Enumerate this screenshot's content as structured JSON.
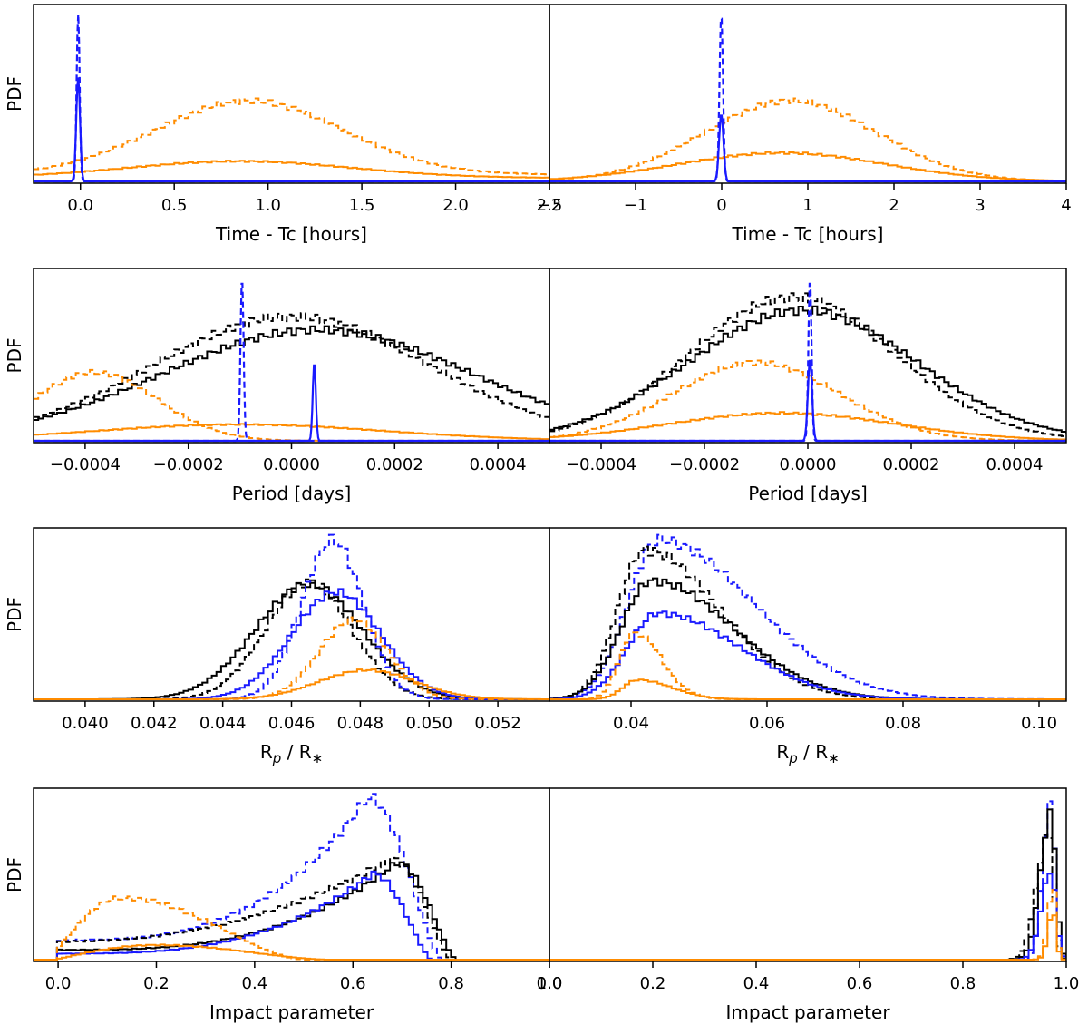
{
  "colors": {
    "orange": "#ff8c00",
    "blue": "#1a1aff",
    "black": "#000000"
  },
  "chart_data": [
    {
      "type": "line",
      "ylabel": "PDF",
      "xlabel": "Time - Tc [hours]",
      "xlim": [
        -0.25,
        2.5
      ],
      "xticks": [
        0.0,
        0.5,
        1.0,
        1.5,
        2.0,
        2.5
      ],
      "xtick_labels": [
        "0.0",
        "0.5",
        "1.0",
        "1.5",
        "2.0",
        "2.5"
      ],
      "ymax": 1.0,
      "series": [
        {
          "color": "orange",
          "dash": true,
          "step": true,
          "shape": "gauss",
          "center": 0.9,
          "sigma": 0.5,
          "amp": 0.44,
          "floor": 0.04
        },
        {
          "color": "orange",
          "dash": false,
          "step": true,
          "shape": "gauss",
          "center": 0.85,
          "sigma": 0.6,
          "amp": 0.1,
          "floor": 0.02
        },
        {
          "color": "blue",
          "dash": true,
          "step": false,
          "shape": "gauss",
          "center": -0.01,
          "sigma": 0.008,
          "amp": 1.0,
          "floor": 0
        },
        {
          "color": "blue",
          "dash": false,
          "step": false,
          "shape": "gauss",
          "center": -0.01,
          "sigma": 0.01,
          "amp": 0.62,
          "floor": 0
        }
      ]
    },
    {
      "type": "line",
      "ylabel": "",
      "xlabel": "Time - Tc [hours]",
      "xlim": [
        -2.0,
        4.0
      ],
      "xticks": [
        -2,
        -1,
        0,
        1,
        2,
        3,
        4
      ],
      "xtick_labels": [
        "−2",
        "−1",
        "0",
        "1",
        "2",
        "3",
        "4"
      ],
      "ymax": 1.0,
      "series": [
        {
          "color": "orange",
          "dash": true,
          "step": true,
          "shape": "gauss",
          "center": 0.8,
          "sigma": 1.0,
          "amp": 0.48,
          "floor": 0.0
        },
        {
          "color": "orange",
          "dash": false,
          "step": true,
          "shape": "gauss",
          "center": 0.7,
          "sigma": 1.2,
          "amp": 0.17,
          "floor": 0.0
        },
        {
          "color": "blue",
          "dash": true,
          "step": false,
          "shape": "gauss",
          "center": 0.0,
          "sigma": 0.02,
          "amp": 1.0,
          "floor": 0
        },
        {
          "color": "blue",
          "dash": false,
          "step": false,
          "shape": "gauss",
          "center": 0.0,
          "sigma": 0.025,
          "amp": 0.4,
          "floor": 0
        }
      ]
    },
    {
      "type": "line",
      "ylabel": "PDF",
      "xlabel": "Period [days]",
      "xlim": [
        -0.0005,
        0.0005
      ],
      "xticks": [
        -0.0004,
        -0.0002,
        0.0,
        0.0002,
        0.0004
      ],
      "xtick_labels": [
        "−0.0004",
        "−0.0002",
        "0.0000",
        "0.0002",
        "0.0004"
      ],
      "ymax": 1.0,
      "series": [
        {
          "color": "black",
          "dash": true,
          "step": true,
          "shape": "gauss",
          "center": 0.0,
          "sigma": 0.00027,
          "amp": 0.76,
          "floor": 0
        },
        {
          "color": "black",
          "dash": false,
          "step": true,
          "shape": "gauss",
          "center": 5e-05,
          "sigma": 0.0003,
          "amp": 0.68,
          "floor": 0
        },
        {
          "color": "orange",
          "dash": true,
          "step": true,
          "shape": "gauss",
          "center": -0.00038,
          "sigma": 0.00012,
          "amp": 0.42,
          "floor": 0
        },
        {
          "color": "orange",
          "dash": false,
          "step": true,
          "shape": "gauss",
          "center": -0.0001,
          "sigma": 0.00028,
          "amp": 0.1,
          "floor": 0
        },
        {
          "color": "blue",
          "dash": true,
          "step": false,
          "shape": "gauss",
          "center": -9.5e-05,
          "sigma": 3e-06,
          "amp": 1.0,
          "floor": 0
        },
        {
          "color": "blue",
          "dash": false,
          "step": false,
          "shape": "gauss",
          "center": 4.5e-05,
          "sigma": 3e-06,
          "amp": 0.48,
          "floor": 0
        }
      ]
    },
    {
      "type": "line",
      "ylabel": "",
      "xlabel": "Period [days]",
      "xlim": [
        -0.0005,
        0.0005
      ],
      "xticks": [
        -0.0004,
        -0.0002,
        0.0,
        0.0002,
        0.0004
      ],
      "xtick_labels": [
        "−0.0004",
        "−0.0002",
        "0.0000",
        "0.0002",
        "0.0004"
      ],
      "ymax": 1.0,
      "series": [
        {
          "color": "black",
          "dash": true,
          "step": true,
          "shape": "gauss",
          "center": -3e-05,
          "sigma": 0.0002,
          "amp": 0.88,
          "floor": 0
        },
        {
          "color": "black",
          "dash": false,
          "step": true,
          "shape": "gauss",
          "center": -1e-05,
          "sigma": 0.00022,
          "amp": 0.8,
          "floor": 0
        },
        {
          "color": "orange",
          "dash": true,
          "step": true,
          "shape": "gauss",
          "center": -0.0001,
          "sigma": 0.00016,
          "amp": 0.48,
          "floor": 0
        },
        {
          "color": "orange",
          "dash": false,
          "step": true,
          "shape": "gauss",
          "center": -5e-05,
          "sigma": 0.00022,
          "amp": 0.17,
          "floor": 0
        },
        {
          "color": "blue",
          "dash": true,
          "step": false,
          "shape": "gauss",
          "center": 5e-06,
          "sigma": 3e-06,
          "amp": 1.0,
          "floor": 0
        },
        {
          "color": "blue",
          "dash": false,
          "step": false,
          "shape": "gauss",
          "center": 5e-06,
          "sigma": 4e-06,
          "amp": 0.5,
          "floor": 0
        }
      ]
    },
    {
      "type": "line",
      "ylabel": "PDF",
      "xlabel": "R$_p$ / R$_*$",
      "xlabel_parts": {
        "r": "R",
        "p": "p",
        "mid": " / R",
        "star": "∗"
      },
      "xlim": [
        0.0385,
        0.0535
      ],
      "xticks": [
        0.04,
        0.042,
        0.044,
        0.046,
        0.048,
        0.05,
        0.052
      ],
      "xtick_labels": [
        "0.040",
        "0.042",
        "0.044",
        "0.046",
        "0.048",
        "0.050",
        "0.052"
      ],
      "ymax": 1.0,
      "series": [
        {
          "color": "black",
          "dash": false,
          "step": true,
          "shape": "gauss",
          "center": 0.0465,
          "sigma": 0.00155,
          "amp": 0.71,
          "floor": 0
        },
        {
          "color": "black",
          "dash": true,
          "step": true,
          "shape": "gauss",
          "center": 0.0465,
          "sigma": 0.00125,
          "amp": 0.72,
          "floor": 0
        },
        {
          "color": "blue",
          "dash": true,
          "step": true,
          "shape": "gauss",
          "center": 0.0472,
          "sigma": 0.0009,
          "amp": 0.98,
          "floor": 0
        },
        {
          "color": "blue",
          "dash": false,
          "step": true,
          "shape": "gauss",
          "center": 0.0473,
          "sigma": 0.0013,
          "amp": 0.66,
          "floor": 0
        },
        {
          "color": "orange",
          "dash": true,
          "step": true,
          "shape": "gauss",
          "center": 0.0478,
          "sigma": 0.001,
          "amp": 0.49,
          "floor": 0
        },
        {
          "color": "orange",
          "dash": false,
          "step": true,
          "shape": "gauss",
          "center": 0.0482,
          "sigma": 0.0014,
          "amp": 0.18,
          "floor": 0
        }
      ]
    },
    {
      "type": "line",
      "ylabel": "",
      "xlabel": "R$_p$ / R$_*$",
      "xlabel_parts": {
        "r": "R",
        "p": "p",
        "mid": " / R",
        "star": "∗"
      },
      "xlim": [
        0.028,
        0.104
      ],
      "xticks": [
        0.04,
        0.06,
        0.08,
        0.1
      ],
      "xtick_labels": [
        "0.04",
        "0.06",
        "0.08",
        "0.10"
      ],
      "ymax": 1.0,
      "series": [
        {
          "color": "blue",
          "dash": true,
          "step": true,
          "shape": "skew",
          "center": 0.044,
          "left": 0.0045,
          "right": 0.014,
          "amp": 0.98,
          "floor": 0
        },
        {
          "color": "black",
          "dash": true,
          "step": true,
          "shape": "skew",
          "center": 0.042,
          "left": 0.004,
          "right": 0.011,
          "amp": 0.92,
          "floor": 0
        },
        {
          "color": "black",
          "dash": false,
          "step": true,
          "shape": "skew",
          "center": 0.043,
          "left": 0.0045,
          "right": 0.012,
          "amp": 0.73,
          "floor": 0
        },
        {
          "color": "blue",
          "dash": false,
          "step": true,
          "shape": "skew",
          "center": 0.044,
          "left": 0.0045,
          "right": 0.012,
          "amp": 0.53,
          "floor": 0
        },
        {
          "color": "orange",
          "dash": true,
          "step": true,
          "shape": "skew",
          "center": 0.0405,
          "left": 0.0022,
          "right": 0.004,
          "amp": 0.41,
          "floor": 0
        },
        {
          "color": "orange",
          "dash": false,
          "step": true,
          "shape": "skew",
          "center": 0.041,
          "left": 0.0022,
          "right": 0.005,
          "amp": 0.12,
          "floor": 0
        }
      ]
    },
    {
      "type": "line",
      "ylabel": "PDF",
      "xlabel": "Impact parameter",
      "xlim": [
        -0.05,
        1.0
      ],
      "xticks": [
        0.0,
        0.2,
        0.4,
        0.6,
        0.8,
        1.0
      ],
      "xtick_labels": [
        "0.0",
        "0.2",
        "0.4",
        "0.6",
        "0.8",
        "1.0"
      ],
      "ymax": 1.0,
      "series": [
        {
          "color": "blue",
          "dash": true,
          "step": true,
          "shape": "ramp",
          "start": 0.0,
          "peak": 0.63,
          "end": 0.78,
          "base": 0.12,
          "amp": 1.0,
          "curve": 3.0
        },
        {
          "color": "black",
          "dash": true,
          "step": true,
          "shape": "ramp",
          "start": 0.0,
          "peak": 0.68,
          "end": 0.8,
          "base": 0.18,
          "amp": 0.62,
          "curve": 2.2
        },
        {
          "color": "black",
          "dash": false,
          "step": true,
          "shape": "ramp",
          "start": 0.0,
          "peak": 0.69,
          "end": 0.81,
          "base": 0.1,
          "amp": 0.6,
          "curve": 3.0
        },
        {
          "color": "blue",
          "dash": false,
          "step": true,
          "shape": "ramp",
          "start": 0.0,
          "peak": 0.64,
          "end": 0.76,
          "base": 0.07,
          "amp": 0.53,
          "curve": 3.0
        },
        {
          "color": "orange",
          "dash": true,
          "step": true,
          "shape": "hump",
          "start": 0.0,
          "peak": 0.13,
          "end": 0.5,
          "base": 0.2,
          "amp": 0.38
        },
        {
          "color": "orange",
          "dash": false,
          "step": true,
          "shape": "hump",
          "start": 0.0,
          "peak": 0.2,
          "end": 0.55,
          "base": 0.05,
          "amp": 0.09
        }
      ]
    },
    {
      "type": "line",
      "ylabel": "",
      "xlabel": "Impact parameter",
      "xlim": [
        0.0,
        1.0
      ],
      "xticks": [
        0.0,
        0.2,
        0.4,
        0.6,
        0.8,
        1.0
      ],
      "xtick_labels": [
        "0.0",
        "0.2",
        "0.4",
        "0.6",
        "0.8",
        "1.0"
      ],
      "ymax": 1.0,
      "series": [
        {
          "color": "blue",
          "dash": true,
          "step": true,
          "shape": "skew",
          "center": 0.97,
          "left": 0.015,
          "right": 0.008,
          "amp": 1.0,
          "floor": 0
        },
        {
          "color": "black",
          "dash": false,
          "step": true,
          "shape": "skew",
          "center": 0.97,
          "left": 0.02,
          "right": 0.01,
          "amp": 0.9,
          "floor": 0
        },
        {
          "color": "black",
          "dash": true,
          "step": true,
          "shape": "skew",
          "center": 0.965,
          "left": 0.022,
          "right": 0.01,
          "amp": 0.78,
          "floor": 0
        },
        {
          "color": "blue",
          "dash": false,
          "step": true,
          "shape": "skew",
          "center": 0.97,
          "left": 0.018,
          "right": 0.01,
          "amp": 0.55,
          "floor": 0
        },
        {
          "color": "orange",
          "dash": true,
          "step": true,
          "shape": "skew",
          "center": 0.975,
          "left": 0.01,
          "right": 0.006,
          "amp": 0.45,
          "floor": 0
        },
        {
          "color": "orange",
          "dash": false,
          "step": true,
          "shape": "skew",
          "center": 0.975,
          "left": 0.01,
          "right": 0.006,
          "amp": 0.3,
          "floor": 0
        }
      ]
    }
  ]
}
